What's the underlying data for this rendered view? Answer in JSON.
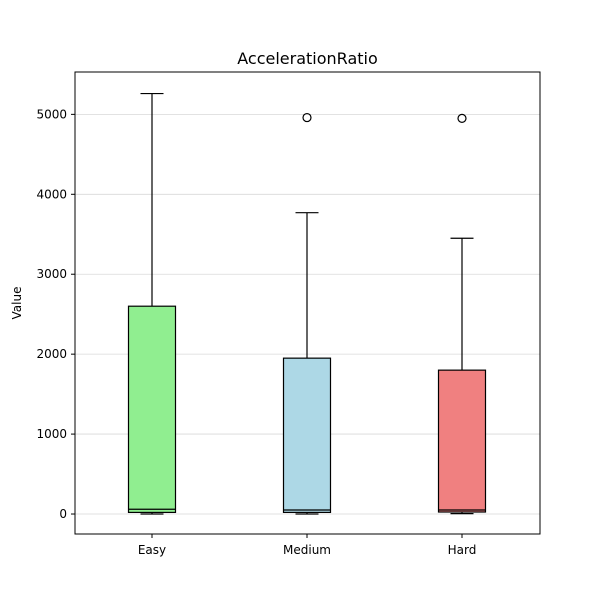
{
  "chart_data": {
    "type": "box",
    "title": "AccelerationRatio",
    "xlabel": "",
    "ylabel": "Value",
    "ylim": [
      -250,
      5530
    ],
    "yticks": [
      0,
      1000,
      2000,
      3000,
      4000,
      5000
    ],
    "ytick_labels": [
      "0",
      "1000",
      "2000",
      "3000",
      "4000",
      "5000"
    ],
    "grid": "y",
    "categories": [
      "Easy",
      "Medium",
      "Hard"
    ],
    "boxes": [
      {
        "label": "Easy",
        "whisker_low": 0,
        "q1": 20,
        "median": 60,
        "q3": 2600,
        "whisker_high": 5260,
        "fliers": [],
        "color": "#90ee90"
      },
      {
        "label": "Medium",
        "whisker_low": 0,
        "q1": 20,
        "median": 50,
        "q3": 1950,
        "whisker_high": 3770,
        "fliers": [
          4960
        ],
        "color": "#add8e6"
      },
      {
        "label": "Hard",
        "whisker_low": 5,
        "q1": 25,
        "median": 50,
        "q3": 1800,
        "whisker_high": 3450,
        "fliers": [
          4950
        ],
        "color": "#f08080"
      }
    ]
  }
}
